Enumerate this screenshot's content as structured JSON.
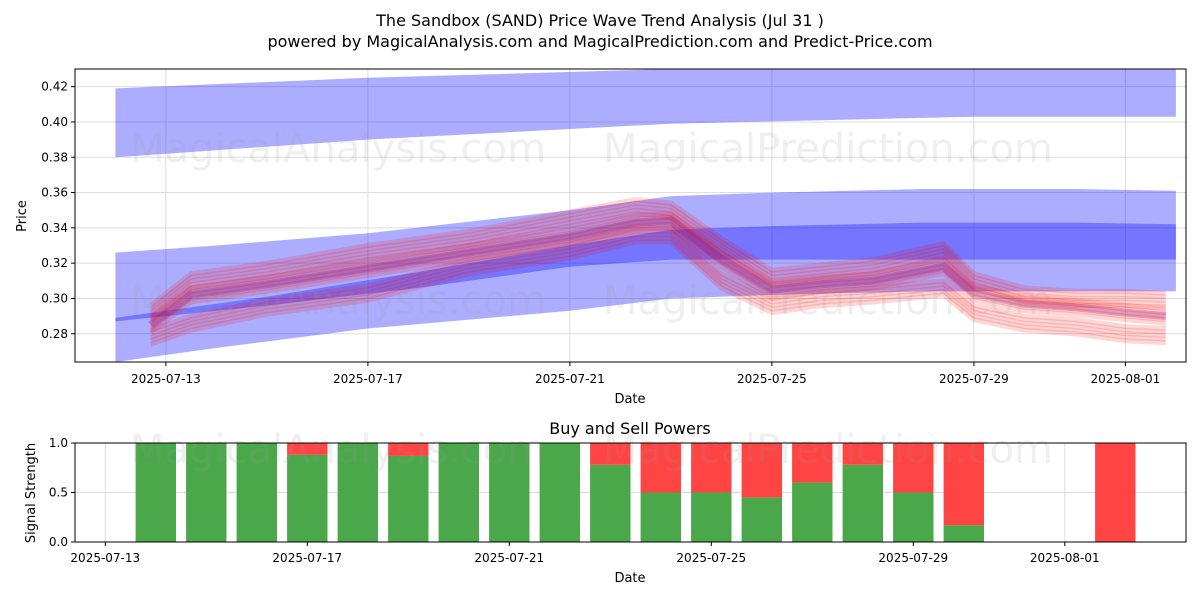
{
  "header": {
    "title": "The Sandbox (SAND) Price Wave Trend Analysis (Jul 31 )",
    "subtitle": "powered by MagicalAnalysis.com and MagicalPrediction.com and Predict-Price.com"
  },
  "watermarks": {
    "left": "MagicalAnalysis.com",
    "right": "MagicalPrediction.com"
  },
  "colors": {
    "band_blue": "#0000ff",
    "trace_red": "#ff0000",
    "trace_purple": "#990066",
    "buy_green": "#4aa84a",
    "sell_red": "#ff4444",
    "grid": "#dddddd"
  },
  "chart_data": [
    {
      "type": "area",
      "title": "",
      "xlabel": "Date",
      "ylabel": "Price",
      "x_start": "2025-07-12",
      "x_end": "2025-08-03",
      "xlim_days": [
        -0.8,
        21.2
      ],
      "ylim": [
        0.264,
        0.43
      ],
      "yticks": [
        "0.28",
        "0.30",
        "0.32",
        "0.34",
        "0.36",
        "0.38",
        "0.40",
        "0.42"
      ],
      "ytick_values": [
        0.28,
        0.3,
        0.32,
        0.34,
        0.36,
        0.38,
        0.4,
        0.42
      ],
      "xticks": [
        "2025-07-13",
        "2025-07-17",
        "2025-07-21",
        "2025-07-25",
        "2025-07-29",
        "2025-08-01"
      ],
      "xtick_days": [
        1,
        5,
        9,
        13,
        17,
        20
      ],
      "grid": true,
      "bands": [
        {
          "name": "upper-wave",
          "x": [
            0,
            5,
            11,
            17,
            21
          ],
          "upper": [
            0.419,
            0.425,
            0.43,
            0.43,
            0.43
          ],
          "lower": [
            0.38,
            0.39,
            0.399,
            0.403,
            0.403
          ]
        },
        {
          "name": "middle-wave-wide",
          "x": [
            0,
            2,
            5,
            9,
            11,
            13,
            16,
            19,
            21
          ],
          "upper": [
            0.326,
            0.33,
            0.337,
            0.35,
            0.358,
            0.36,
            0.362,
            0.362,
            0.361
          ],
          "lower": [
            0.264,
            0.272,
            0.283,
            0.293,
            0.3,
            0.302,
            0.304,
            0.304,
            0.304
          ]
        },
        {
          "name": "middle-wave-core",
          "x": [
            0,
            3,
            6,
            9,
            11,
            13,
            16,
            19,
            21
          ],
          "upper": [
            0.289,
            0.301,
            0.315,
            0.33,
            0.339,
            0.341,
            0.343,
            0.343,
            0.342
          ],
          "lower": [
            0.287,
            0.296,
            0.306,
            0.318,
            0.322,
            0.322,
            0.322,
            0.322,
            0.322
          ]
        }
      ],
      "series": [
        {
          "name": "price-trace-main",
          "x": [
            0.7,
            1.5,
            3,
            5,
            7,
            9,
            10.3,
            11,
            12,
            13,
            14,
            15,
            16.4,
            17,
            18,
            19,
            20,
            20.8
          ],
          "values": [
            0.285,
            0.302,
            0.308,
            0.317,
            0.326,
            0.335,
            0.343,
            0.344,
            0.322,
            0.305,
            0.308,
            0.31,
            0.318,
            0.303,
            0.297,
            0.295,
            0.292,
            0.29
          ]
        },
        {
          "name": "price-trace-high",
          "x": [
            0.7,
            1.5,
            3,
            5,
            7,
            9,
            10.3,
            11,
            12,
            13,
            14,
            15,
            16.4,
            17,
            18,
            19,
            20,
            20.8
          ],
          "values": [
            0.292,
            0.31,
            0.316,
            0.326,
            0.334,
            0.345,
            0.352,
            0.35,
            0.33,
            0.312,
            0.315,
            0.318,
            0.327,
            0.31,
            0.302,
            0.3,
            0.3,
            0.299
          ]
        },
        {
          "name": "price-trace-low",
          "x": [
            0.7,
            1.5,
            3,
            5,
            7,
            9,
            10.3,
            11,
            12,
            13,
            14,
            15,
            16.4,
            17,
            18,
            19,
            20,
            20.8
          ],
          "values": [
            0.278,
            0.286,
            0.295,
            0.303,
            0.318,
            0.327,
            0.336,
            0.336,
            0.31,
            0.296,
            0.3,
            0.302,
            0.306,
            0.292,
            0.286,
            0.284,
            0.28,
            0.279
          ]
        }
      ]
    },
    {
      "type": "bar",
      "title": "Buy and Sell Powers",
      "xlabel": "Date",
      "ylabel": "Signal Strength",
      "xlim_days": [
        -0.6,
        21.4
      ],
      "ylim": [
        0,
        1.0
      ],
      "yticks": [
        "0.0",
        "0.5",
        "1.0"
      ],
      "ytick_values": [
        0,
        0.5,
        1.0
      ],
      "xticks": [
        "2025-07-13",
        "2025-07-17",
        "2025-07-21",
        "2025-07-25",
        "2025-07-29",
        "2025-08-01"
      ],
      "xtick_days": [
        0,
        4,
        8,
        12,
        16,
        19
      ],
      "grid": true,
      "categories": [
        "2025-07-14",
        "2025-07-15",
        "2025-07-16",
        "2025-07-17",
        "2025-07-18",
        "2025-07-19",
        "2025-07-20",
        "2025-07-21",
        "2025-07-22",
        "2025-07-23",
        "2025-07-24",
        "2025-07-25",
        "2025-07-26",
        "2025-07-27",
        "2025-07-28",
        "2025-07-29",
        "2025-07-30",
        "2025-08-02"
      ],
      "series": [
        {
          "name": "Buy",
          "values": [
            1.0,
            1.0,
            1.0,
            0.88,
            1.0,
            0.87,
            1.0,
            1.0,
            1.0,
            0.78,
            0.5,
            0.5,
            0.45,
            0.6,
            0.78,
            0.5,
            0.17,
            0.0
          ]
        },
        {
          "name": "Sell",
          "values": [
            0.0,
            0.0,
            0.0,
            0.12,
            0.0,
            0.13,
            0.0,
            0.0,
            0.0,
            0.22,
            0.5,
            0.5,
            0.55,
            0.4,
            0.22,
            0.5,
            0.83,
            1.0
          ]
        }
      ]
    }
  ]
}
